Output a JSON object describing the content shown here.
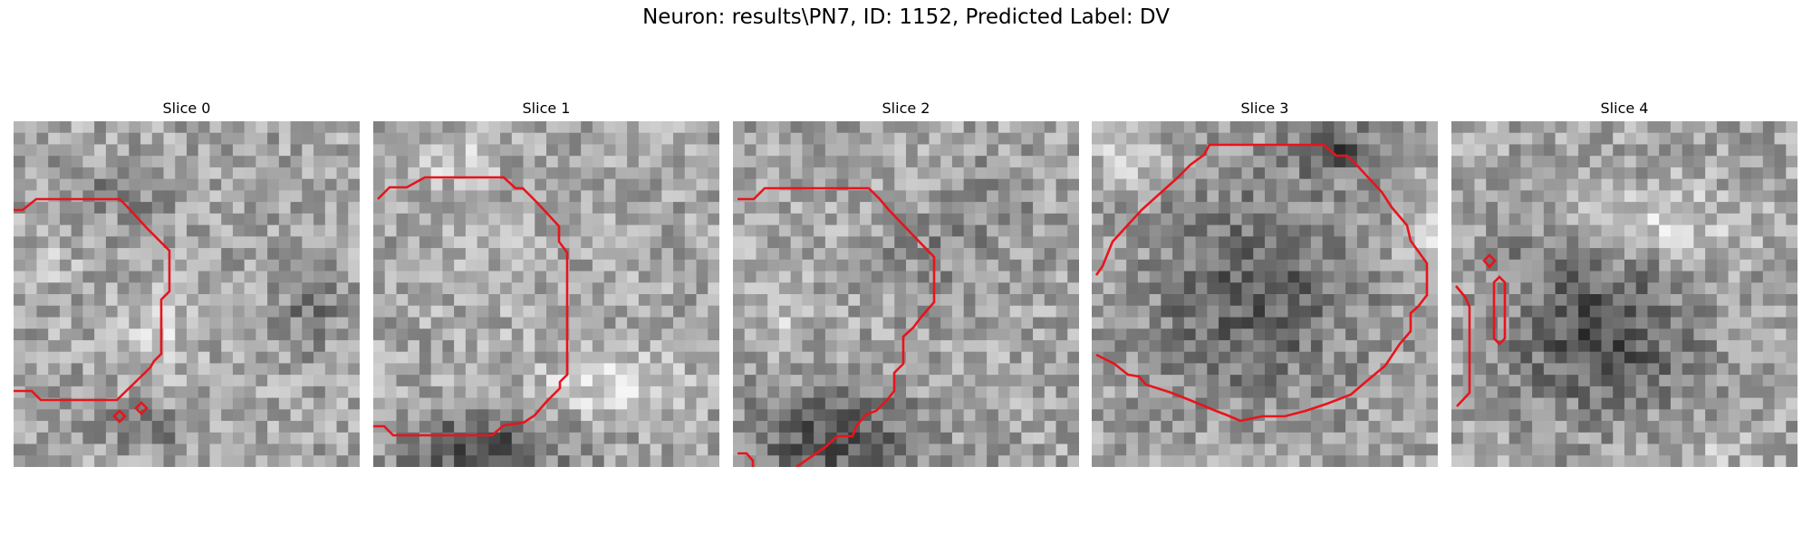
{
  "figure": {
    "title": "Neuron: results\\PN7, ID: 1152, Predicted Label: DV"
  },
  "colors": {
    "contour": "#e8141c",
    "background": "#ffffff"
  },
  "colormap": "grayscale",
  "panels": [
    {
      "title": "Slice 0"
    },
    {
      "title": "Slice 1"
    },
    {
      "title": "Slice 2"
    },
    {
      "title": "Slice 3"
    },
    {
      "title": "Slice 4"
    }
  ]
}
